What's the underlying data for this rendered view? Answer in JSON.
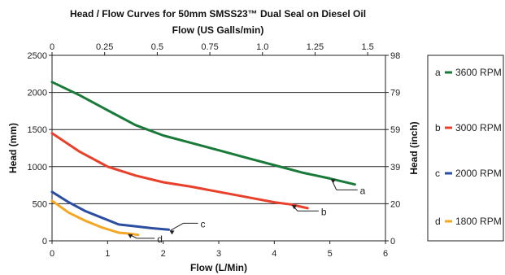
{
  "chart_data": {
    "type": "line",
    "title": "Head / Flow Curves for 50mm SMSS23™ Dual Seal on Diesel Oil",
    "top_axis_label": "Flow (US Galls/min)",
    "xlabel": "Flow (L/Min)",
    "ylabel": "Head (mm)",
    "y2label": "Head (inch)",
    "xlim": [
      0,
      6
    ],
    "ylim": [
      0,
      2500
    ],
    "x_ticks": [
      "0",
      "1",
      "2",
      "3",
      "4",
      "5",
      "6"
    ],
    "y_ticks": [
      "0",
      "500",
      "1000",
      "1500",
      "2000",
      "2500"
    ],
    "top_ticks": [
      "0",
      "0.25",
      "0.5",
      "0.75",
      "1.0",
      "1.25",
      "1.5"
    ],
    "right_ticks": [
      "0",
      "20",
      "39",
      "59",
      "79",
      "98"
    ],
    "grid": "horizontal",
    "legend_position": "right",
    "series": [
      {
        "name": "3600 RPM",
        "tag": "a",
        "color": "#1a7a3a",
        "x": [
          0,
          0.5,
          1.0,
          1.5,
          2.0,
          2.5,
          3.0,
          3.5,
          4.0,
          4.5,
          5.0,
          5.45
        ],
        "y": [
          2140,
          1960,
          1760,
          1560,
          1420,
          1320,
          1220,
          1120,
          1020,
          920,
          840,
          760
        ]
      },
      {
        "name": "3000 RPM",
        "tag": "b",
        "color": "#e8402a",
        "x": [
          0,
          0.5,
          1.0,
          1.5,
          2.0,
          2.5,
          3.0,
          3.5,
          4.0,
          4.3,
          4.6
        ],
        "y": [
          1450,
          1200,
          1000,
          880,
          790,
          730,
          660,
          590,
          520,
          490,
          440
        ]
      },
      {
        "name": "2000 RPM",
        "tag": "c",
        "color": "#2b4ea0",
        "x": [
          0,
          0.3,
          0.6,
          0.9,
          1.2,
          1.45,
          1.8,
          2.1
        ],
        "y": [
          660,
          520,
          400,
          310,
          220,
          200,
          170,
          150
        ]
      },
      {
        "name": "1800 RPM",
        "tag": "d",
        "color": "#f5a623",
        "x": [
          0,
          0.3,
          0.6,
          0.9,
          1.2,
          1.35,
          1.55
        ],
        "y": [
          540,
          380,
          270,
          180,
          110,
          100,
          80
        ]
      }
    ]
  }
}
